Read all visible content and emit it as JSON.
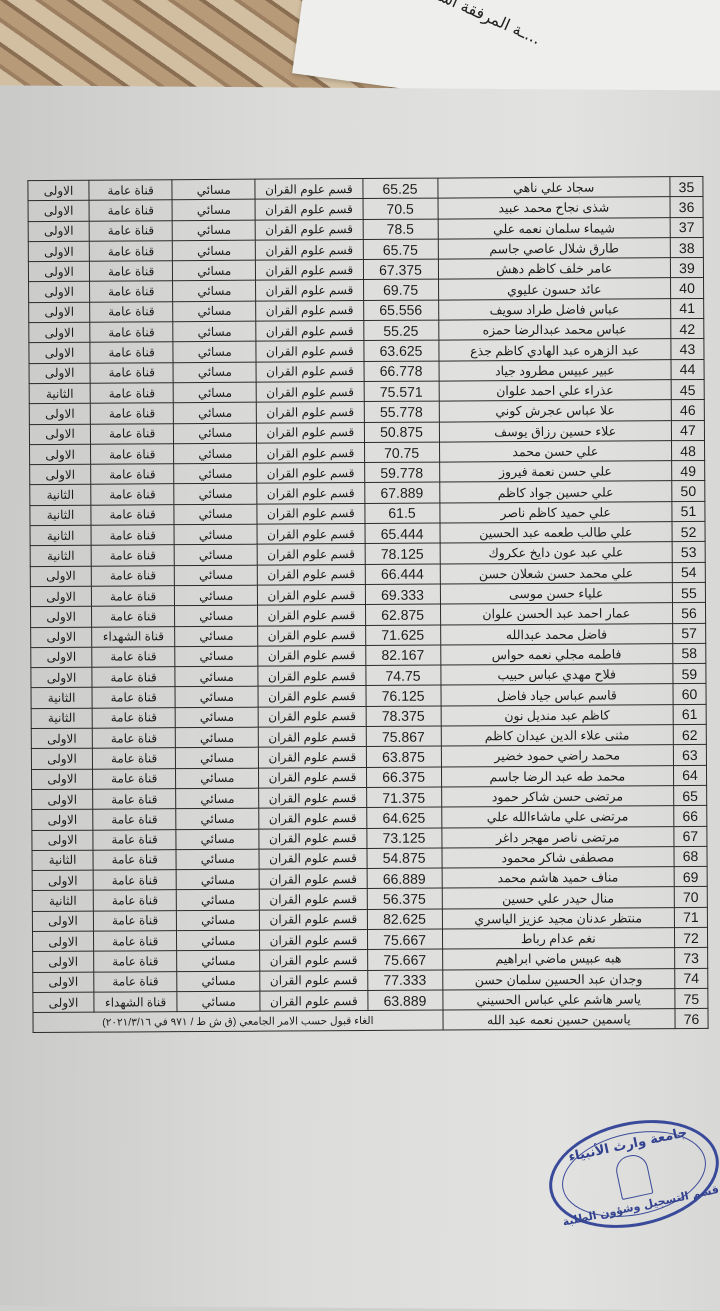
{
  "header_fragment": "...ـة المرفقة اسمائهم",
  "table": {
    "rows": [
      {
        "num": "35",
        "name": "سجاد علي ناهي",
        "score": "65.25",
        "dept": "قسم علوم القران",
        "study": "مسائي",
        "channel": "قناة عامة",
        "stage": "الاولى"
      },
      {
        "num": "36",
        "name": "شذى نجاح محمد عبيد",
        "score": "70.5",
        "dept": "قسم علوم القران",
        "study": "مسائي",
        "channel": "قناة عامة",
        "stage": "الاولى"
      },
      {
        "num": "37",
        "name": "شيماء سلمان نعمه علي",
        "score": "78.5",
        "dept": "قسم علوم القران",
        "study": "مسائي",
        "channel": "قناة عامة",
        "stage": "الاولى"
      },
      {
        "num": "38",
        "name": "طارق شلال عاصي جاسم",
        "score": "65.75",
        "dept": "قسم علوم القران",
        "study": "مسائي",
        "channel": "قناة عامة",
        "stage": "الاولى"
      },
      {
        "num": "39",
        "name": "عامر خلف كاظم دهش",
        "score": "67.375",
        "dept": "قسم علوم القران",
        "study": "مسائي",
        "channel": "قناة عامة",
        "stage": "الاولى"
      },
      {
        "num": "40",
        "name": "عائد حسون عليوي",
        "score": "69.75",
        "dept": "قسم علوم القران",
        "study": "مسائي",
        "channel": "قناة عامة",
        "stage": "الاولى"
      },
      {
        "num": "41",
        "name": "عباس فاضل طراد سويف",
        "score": "65.556",
        "dept": "قسم علوم القران",
        "study": "مسائي",
        "channel": "قناة عامة",
        "stage": "الاولى"
      },
      {
        "num": "42",
        "name": "عباس محمد عبدالرضا حمزه",
        "score": "55.25",
        "dept": "قسم علوم القران",
        "study": "مسائي",
        "channel": "قناة عامة",
        "stage": "الاولى"
      },
      {
        "num": "43",
        "name": "عبد الزهره عبد الهادي كاظم جذع",
        "score": "63.625",
        "dept": "قسم علوم القران",
        "study": "مسائي",
        "channel": "قناة عامة",
        "stage": "الاولى"
      },
      {
        "num": "44",
        "name": "عبير عبيس مطرود جياد",
        "score": "66.778",
        "dept": "قسم علوم القران",
        "study": "مسائي",
        "channel": "قناة عامة",
        "stage": "الاولى"
      },
      {
        "num": "45",
        "name": "عذراء علي احمد علوان",
        "score": "75.571",
        "dept": "قسم علوم القران",
        "study": "مسائي",
        "channel": "قناة عامة",
        "stage": "الثانية"
      },
      {
        "num": "46",
        "name": "علا عباس عجرش كوني",
        "score": "55.778",
        "dept": "قسم علوم القران",
        "study": "مسائي",
        "channel": "قناة عامة",
        "stage": "الاولى"
      },
      {
        "num": "47",
        "name": "علاء حسين رزاق يوسف",
        "score": "50.875",
        "dept": "قسم علوم القران",
        "study": "مسائي",
        "channel": "قناة عامة",
        "stage": "الاولى"
      },
      {
        "num": "48",
        "name": "علي حسن محمد",
        "score": "70.75",
        "dept": "قسم علوم القران",
        "study": "مسائي",
        "channel": "قناة عامة",
        "stage": "الاولى"
      },
      {
        "num": "49",
        "name": "علي حسن نعمة فيروز",
        "score": "59.778",
        "dept": "قسم علوم القران",
        "study": "مسائي",
        "channel": "قناة عامة",
        "stage": "الاولى"
      },
      {
        "num": "50",
        "name": "علي حسين جواد كاظم",
        "score": "67.889",
        "dept": "قسم علوم القران",
        "study": "مسائي",
        "channel": "قناة عامة",
        "stage": "الثانية"
      },
      {
        "num": "51",
        "name": "علي حميد كاظم ناصر",
        "score": "61.5",
        "dept": "قسم علوم القران",
        "study": "مسائي",
        "channel": "قناة عامة",
        "stage": "الثانية"
      },
      {
        "num": "52",
        "name": "علي طالب طعمه عبد الحسين",
        "score": "65.444",
        "dept": "قسم علوم القران",
        "study": "مسائي",
        "channel": "قناة عامة",
        "stage": "الثانية"
      },
      {
        "num": "53",
        "name": "علي عبد عون دايخ عكروك",
        "score": "78.125",
        "dept": "قسم علوم القران",
        "study": "مسائي",
        "channel": "قناة عامة",
        "stage": "الثانية"
      },
      {
        "num": "54",
        "name": "علي محمد حسن شعلان حسن",
        "score": "66.444",
        "dept": "قسم علوم القران",
        "study": "مسائي",
        "channel": "قناة عامة",
        "stage": "الاولى"
      },
      {
        "num": "55",
        "name": "علياء حسن موسى",
        "score": "69.333",
        "dept": "قسم علوم القران",
        "study": "مسائي",
        "channel": "قناة عامة",
        "stage": "الاولى"
      },
      {
        "num": "56",
        "name": "عمار احمد عبد الحسن علوان",
        "score": "62.875",
        "dept": "قسم علوم القران",
        "study": "مسائي",
        "channel": "قناة عامة",
        "stage": "الاولى"
      },
      {
        "num": "57",
        "name": "فاضل محمد عبدالله",
        "score": "71.625",
        "dept": "قسم علوم القران",
        "study": "مسائي",
        "channel": "قناة الشهداء",
        "stage": "الاولى"
      },
      {
        "num": "58",
        "name": "فاطمه مجلي نعمه حواس",
        "score": "82.167",
        "dept": "قسم علوم القران",
        "study": "مسائي",
        "channel": "قناة عامة",
        "stage": "الاولى"
      },
      {
        "num": "59",
        "name": "فلاح مهدي عباس حبيب",
        "score": "74.75",
        "dept": "قسم علوم القران",
        "study": "مسائي",
        "channel": "قناة عامة",
        "stage": "الاولى"
      },
      {
        "num": "60",
        "name": "قاسم عباس جياد فاضل",
        "score": "76.125",
        "dept": "قسم علوم القران",
        "study": "مسائي",
        "channel": "قناة عامة",
        "stage": "الثانية"
      },
      {
        "num": "61",
        "name": "كاظم عبد منديل نون",
        "score": "78.375",
        "dept": "قسم علوم القران",
        "study": "مسائي",
        "channel": "قناة عامة",
        "stage": "الثانية"
      },
      {
        "num": "62",
        "name": "مثنى علاء الدين عيدان كاظم",
        "score": "75.867",
        "dept": "قسم علوم القران",
        "study": "مسائي",
        "channel": "قناة عامة",
        "stage": "الاولى"
      },
      {
        "num": "63",
        "name": "محمد راضي حمود خضير",
        "score": "63.875",
        "dept": "قسم علوم القران",
        "study": "مسائي",
        "channel": "قناة عامة",
        "stage": "الاولى"
      },
      {
        "num": "64",
        "name": "محمد طه عبد الرضا جاسم",
        "score": "66.375",
        "dept": "قسم علوم القران",
        "study": "مسائي",
        "channel": "قناة عامة",
        "stage": "الاولى"
      },
      {
        "num": "65",
        "name": "مرتضى حسن شاكر حمود",
        "score": "71.375",
        "dept": "قسم علوم القران",
        "study": "مسائي",
        "channel": "قناة عامة",
        "stage": "الاولى"
      },
      {
        "num": "66",
        "name": "مرتضى علي ماشاءالله علي",
        "score": "64.625",
        "dept": "قسم علوم القران",
        "study": "مسائي",
        "channel": "قناة عامة",
        "stage": "الاولى"
      },
      {
        "num": "67",
        "name": "مرتضى ناصر مهجر داغر",
        "score": "73.125",
        "dept": "قسم علوم القران",
        "study": "مسائي",
        "channel": "قناة عامة",
        "stage": "الاولى"
      },
      {
        "num": "68",
        "name": "مصطفى شاكر محمود",
        "score": "54.875",
        "dept": "قسم علوم القران",
        "study": "مسائي",
        "channel": "قناة عامة",
        "stage": "الثانية"
      },
      {
        "num": "69",
        "name": "مناف حميد هاشم محمد",
        "score": "66.889",
        "dept": "قسم علوم القران",
        "study": "مسائي",
        "channel": "قناة عامة",
        "stage": "الاولى"
      },
      {
        "num": "70",
        "name": "منال حيدر علي حسين",
        "score": "56.375",
        "dept": "قسم علوم القران",
        "study": "مسائي",
        "channel": "قناة عامة",
        "stage": "الثانية"
      },
      {
        "num": "71",
        "name": "منتظر عدنان مجيد عزيز الياسري",
        "score": "82.625",
        "dept": "قسم علوم القران",
        "study": "مسائي",
        "channel": "قناة عامة",
        "stage": "الاولى"
      },
      {
        "num": "72",
        "name": "نغم عدام رباط",
        "score": "75.667",
        "dept": "قسم علوم القران",
        "study": "مسائي",
        "channel": "قناة عامة",
        "stage": "الاولى"
      },
      {
        "num": "73",
        "name": "هبه عبيس ماضي ابراهيم",
        "score": "75.667",
        "dept": "قسم علوم القران",
        "study": "مسائي",
        "channel": "قناة عامة",
        "stage": "الاولى"
      },
      {
        "num": "74",
        "name": "وجدان عبد الحسين سلمان حسن",
        "score": "77.333",
        "dept": "قسم علوم القران",
        "study": "مسائي",
        "channel": "قناة عامة",
        "stage": "الاولى"
      },
      {
        "num": "75",
        "name": "ياسر هاشم علي عباس الحسيني",
        "score": "63.889",
        "dept": "قسم علوم القران",
        "study": "مسائي",
        "channel": "قناة الشهداء",
        "stage": "الاولى"
      }
    ],
    "cancelled_row": {
      "num": "76",
      "name": "ياسمين حسين نعمه عبد الله",
      "note": "الغاء قبول حسب الامر الجامعي (ق ش ط / ٩٧١ في ٢٠٢١/٣/١٦)"
    }
  },
  "stamp": {
    "line1": "جامعة وارث الأنبياء",
    "line2": "قسم التسجيل وشؤون الطلبة",
    "color": "#33428f"
  }
}
